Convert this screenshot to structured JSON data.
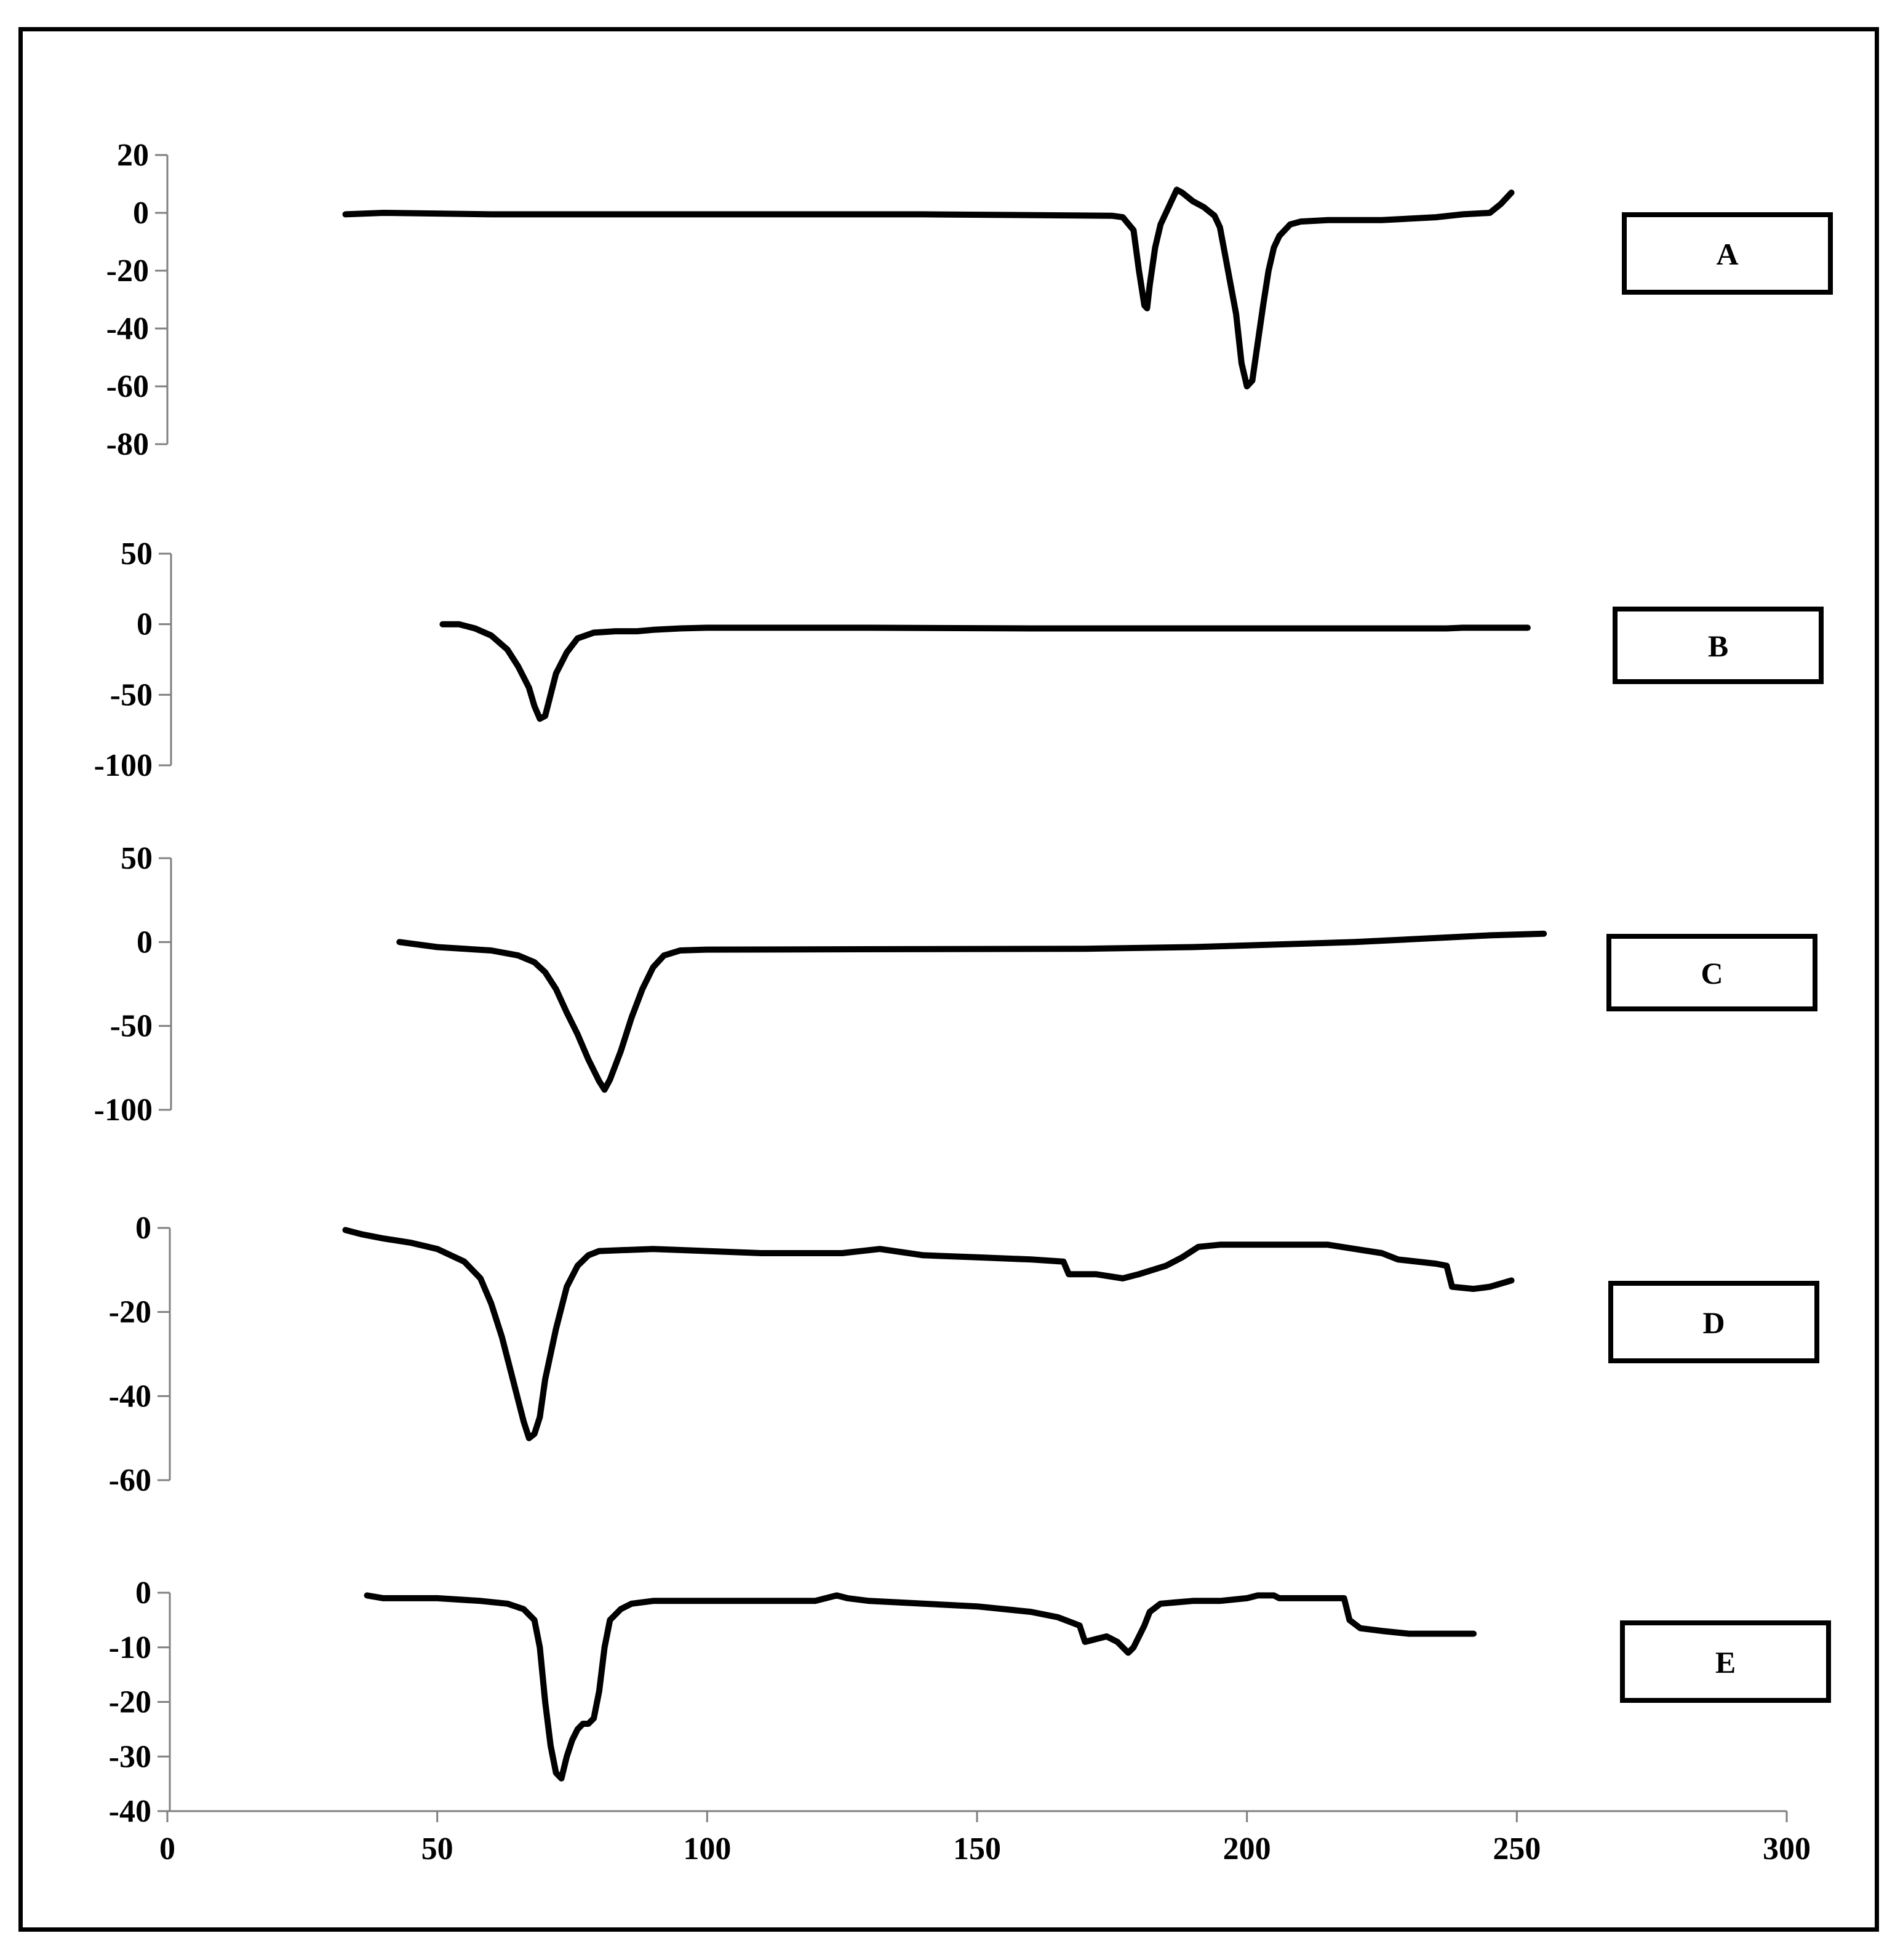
{
  "chart_data": {
    "type": "line",
    "title": "",
    "x_axis": {
      "ticks": [
        0,
        50,
        100,
        150,
        200,
        250,
        300
      ],
      "range": [
        0,
        300
      ]
    },
    "panels": [
      {
        "label": "A",
        "yticks": [
          20,
          0,
          -20,
          -40,
          -60,
          -80
        ],
        "ylim": [
          -80,
          20
        ],
        "points": [
          [
            33,
            -0.5
          ],
          [
            40,
            0
          ],
          [
            60,
            -0.5
          ],
          [
            100,
            -0.5
          ],
          [
            140,
            -0.5
          ],
          [
            175,
            -1
          ],
          [
            177,
            -1.5
          ],
          [
            179,
            -6
          ],
          [
            180,
            -20
          ],
          [
            181,
            -32
          ],
          [
            181.5,
            -33
          ],
          [
            182,
            -25
          ],
          [
            183,
            -12
          ],
          [
            184,
            -4
          ],
          [
            186,
            4
          ],
          [
            187,
            8
          ],
          [
            188,
            7
          ],
          [
            190,
            4
          ],
          [
            192,
            2
          ],
          [
            194,
            -1
          ],
          [
            195,
            -5
          ],
          [
            196,
            -15
          ],
          [
            197,
            -25
          ],
          [
            198,
            -35
          ],
          [
            199,
            -52
          ],
          [
            200,
            -60
          ],
          [
            201,
            -58
          ],
          [
            202,
            -45
          ],
          [
            203,
            -32
          ],
          [
            204,
            -20
          ],
          [
            205,
            -12
          ],
          [
            206,
            -8
          ],
          [
            208,
            -4
          ],
          [
            210,
            -3
          ],
          [
            215,
            -2.5
          ],
          [
            225,
            -2.5
          ],
          [
            235,
            -1.5
          ],
          [
            240,
            -0.5
          ],
          [
            245,
            0
          ],
          [
            247,
            3
          ],
          [
            249,
            7
          ]
        ]
      },
      {
        "label": "B",
        "yticks": [
          50,
          0,
          -50,
          -100
        ],
        "ylim": [
          -100,
          50
        ],
        "points": [
          [
            51,
            0
          ],
          [
            54,
            0
          ],
          [
            57,
            -3
          ],
          [
            60,
            -8
          ],
          [
            63,
            -18
          ],
          [
            65,
            -30
          ],
          [
            67,
            -45
          ],
          [
            68,
            -58
          ],
          [
            69,
            -67
          ],
          [
            70,
            -65
          ],
          [
            71,
            -50
          ],
          [
            72,
            -35
          ],
          [
            74,
            -20
          ],
          [
            76,
            -10
          ],
          [
            79,
            -6
          ],
          [
            83,
            -5
          ],
          [
            87,
            -5
          ],
          [
            90,
            -4
          ],
          [
            95,
            -3
          ],
          [
            100,
            -2.5
          ],
          [
            130,
            -2.5
          ],
          [
            160,
            -3
          ],
          [
            200,
            -3
          ],
          [
            237,
            -3
          ],
          [
            240,
            -2.5
          ],
          [
            252,
            -2.5
          ]
        ]
      },
      {
        "label": "C",
        "yticks": [
          50,
          0,
          -50,
          -100
        ],
        "ylim": [
          -100,
          50
        ],
        "points": [
          [
            43,
            0
          ],
          [
            50,
            -3
          ],
          [
            60,
            -5
          ],
          [
            65,
            -8
          ],
          [
            68,
            -12
          ],
          [
            70,
            -18
          ],
          [
            72,
            -28
          ],
          [
            74,
            -42
          ],
          [
            76,
            -55
          ],
          [
            78,
            -70
          ],
          [
            80,
            -83
          ],
          [
            81,
            -88
          ],
          [
            82,
            -82
          ],
          [
            84,
            -65
          ],
          [
            86,
            -45
          ],
          [
            88,
            -28
          ],
          [
            90,
            -15
          ],
          [
            92,
            -8
          ],
          [
            95,
            -5
          ],
          [
            100,
            -4.5
          ],
          [
            170,
            -4
          ],
          [
            190,
            -3
          ],
          [
            220,
            0
          ],
          [
            245,
            4
          ],
          [
            255,
            5
          ]
        ]
      },
      {
        "label": "D",
        "yticks": [
          0,
          -20,
          -40,
          -60
        ],
        "ylim": [
          -60,
          0
        ],
        "points": [
          [
            33,
            -0.5
          ],
          [
            36,
            -1.5
          ],
          [
            40,
            -2.5
          ],
          [
            45,
            -3.5
          ],
          [
            50,
            -5
          ],
          [
            55,
            -8
          ],
          [
            58,
            -12
          ],
          [
            60,
            -18
          ],
          [
            62,
            -26
          ],
          [
            64,
            -36
          ],
          [
            66,
            -46
          ],
          [
            67,
            -50
          ],
          [
            68,
            -49
          ],
          [
            69,
            -45
          ],
          [
            70,
            -36
          ],
          [
            72,
            -24
          ],
          [
            74,
            -14
          ],
          [
            76,
            -9
          ],
          [
            78,
            -6.5
          ],
          [
            80,
            -5.5
          ],
          [
            90,
            -5
          ],
          [
            110,
            -6
          ],
          [
            125,
            -6
          ],
          [
            132,
            -5
          ],
          [
            140,
            -6.5
          ],
          [
            150,
            -7
          ],
          [
            160,
            -7.5
          ],
          [
            166,
            -8
          ],
          [
            167,
            -11
          ],
          [
            169,
            -11
          ],
          [
            172,
            -11
          ],
          [
            177,
            -12
          ],
          [
            180,
            -11
          ],
          [
            185,
            -9
          ],
          [
            188,
            -7
          ],
          [
            191,
            -4.5
          ],
          [
            195,
            -4
          ],
          [
            210,
            -4
          ],
          [
            215,
            -4
          ],
          [
            220,
            -5
          ],
          [
            225,
            -6
          ],
          [
            228,
            -7.5
          ],
          [
            235,
            -8.5
          ],
          [
            237,
            -9
          ],
          [
            238,
            -14
          ],
          [
            242,
            -14.5
          ],
          [
            245,
            -14
          ],
          [
            249,
            -12.5
          ]
        ]
      },
      {
        "label": "E",
        "yticks": [
          0,
          -10,
          -20,
          -30,
          -40
        ],
        "ylim": [
          -40,
          0
        ],
        "points": [
          [
            37,
            -0.5
          ],
          [
            40,
            -1
          ],
          [
            50,
            -1
          ],
          [
            58,
            -1.5
          ],
          [
            63,
            -2
          ],
          [
            66,
            -3
          ],
          [
            68,
            -5
          ],
          [
            69,
            -10
          ],
          [
            70,
            -20
          ],
          [
            71,
            -28
          ],
          [
            72,
            -33
          ],
          [
            73,
            -34
          ],
          [
            74,
            -30
          ],
          [
            75,
            -27
          ],
          [
            76,
            -25
          ],
          [
            77,
            -24
          ],
          [
            78,
            -24
          ],
          [
            79,
            -23
          ],
          [
            80,
            -18
          ],
          [
            81,
            -10
          ],
          [
            82,
            -5
          ],
          [
            84,
            -3
          ],
          [
            86,
            -2
          ],
          [
            90,
            -1.5
          ],
          [
            100,
            -1.5
          ],
          [
            117,
            -1.5
          ],
          [
            120,
            -1.5
          ],
          [
            124,
            -0.5
          ],
          [
            126,
            -1
          ],
          [
            130,
            -1.5
          ],
          [
            140,
            -2
          ],
          [
            150,
            -2.5
          ],
          [
            160,
            -3.5
          ],
          [
            165,
            -4.5
          ],
          [
            169,
            -6
          ],
          [
            170,
            -9
          ],
          [
            172,
            -8.5
          ],
          [
            174,
            -8
          ],
          [
            176,
            -9
          ],
          [
            178,
            -11
          ],
          [
            179,
            -10
          ],
          [
            181,
            -6
          ],
          [
            182,
            -3.5
          ],
          [
            184,
            -2
          ],
          [
            190,
            -1.5
          ],
          [
            195,
            -1.5
          ],
          [
            200,
            -1
          ],
          [
            202,
            -0.5
          ],
          [
            205,
            -0.5
          ],
          [
            206,
            -1
          ],
          [
            210,
            -1
          ],
          [
            214,
            -1
          ],
          [
            218,
            -1
          ],
          [
            219,
            -5
          ],
          [
            221,
            -6.5
          ],
          [
            225,
            -7
          ],
          [
            230,
            -7.5
          ],
          [
            235,
            -7.5
          ],
          [
            240,
            -7.5
          ],
          [
            242,
            -7.5
          ]
        ]
      }
    ],
    "colors": {
      "line": "#000000",
      "axis": "#808080"
    }
  }
}
